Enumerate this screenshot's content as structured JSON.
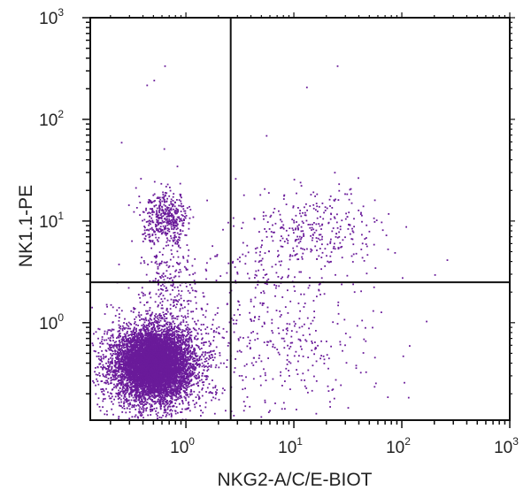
{
  "chart_data": {
    "type": "scatter",
    "title": "",
    "xlabel": "NKG2-A/C/E-BIOT",
    "ylabel": "NK1.1-PE",
    "x_scale": "log",
    "y_scale": "log",
    "xlim": [
      0.13,
      1000
    ],
    "ylim": [
      0.11,
      1000
    ],
    "x_ticks": [
      {
        "base": "10",
        "exp": "0"
      },
      {
        "base": "10",
        "exp": "1"
      },
      {
        "base": "10",
        "exp": "2"
      },
      {
        "base": "10",
        "exp": "3"
      }
    ],
    "y_ticks": [
      {
        "base": "10",
        "exp": "0"
      },
      {
        "base": "10",
        "exp": "1"
      },
      {
        "base": "10",
        "exp": "2"
      },
      {
        "base": "10",
        "exp": "3"
      }
    ],
    "gates": {
      "x": 2.6,
      "y": 2.5
    },
    "point_color": "#6a1b9a",
    "populations": [
      {
        "center": [
          0.5,
          0.4
        ],
        "spread_log": [
          0.16,
          0.16
        ],
        "count": 6500
      },
      {
        "center": [
          0.5,
          0.38
        ],
        "spread_log": [
          0.28,
          0.26
        ],
        "count": 1800
      },
      {
        "center": [
          0.65,
          11
        ],
        "spread_log": [
          0.11,
          0.12
        ],
        "count": 420
      },
      {
        "center": [
          0.7,
          2.5
        ],
        "spread_log": [
          0.12,
          0.3
        ],
        "count": 260
      },
      {
        "center": [
          15,
          8
        ],
        "spread_log": [
          0.3,
          0.22
        ],
        "count": 340
      },
      {
        "center": [
          8,
          0.6
        ],
        "spread_log": [
          0.45,
          0.35
        ],
        "count": 320
      },
      {
        "center": [
          4.5,
          3
        ],
        "spread_log": [
          0.3,
          0.25
        ],
        "count": 90
      }
    ],
    "outliers": [
      [
        0.63,
        340
      ],
      [
        0.5,
        245
      ],
      [
        0.43,
        220
      ],
      [
        13,
        210
      ],
      [
        25,
        340
      ],
      [
        5.5,
        70
      ],
      [
        0.25,
        60
      ],
      [
        0.62,
        52
      ],
      [
        0.82,
        35
      ],
      [
        260,
        4.2
      ],
      [
        200,
        3
      ],
      [
        100,
        2.8
      ]
    ]
  }
}
